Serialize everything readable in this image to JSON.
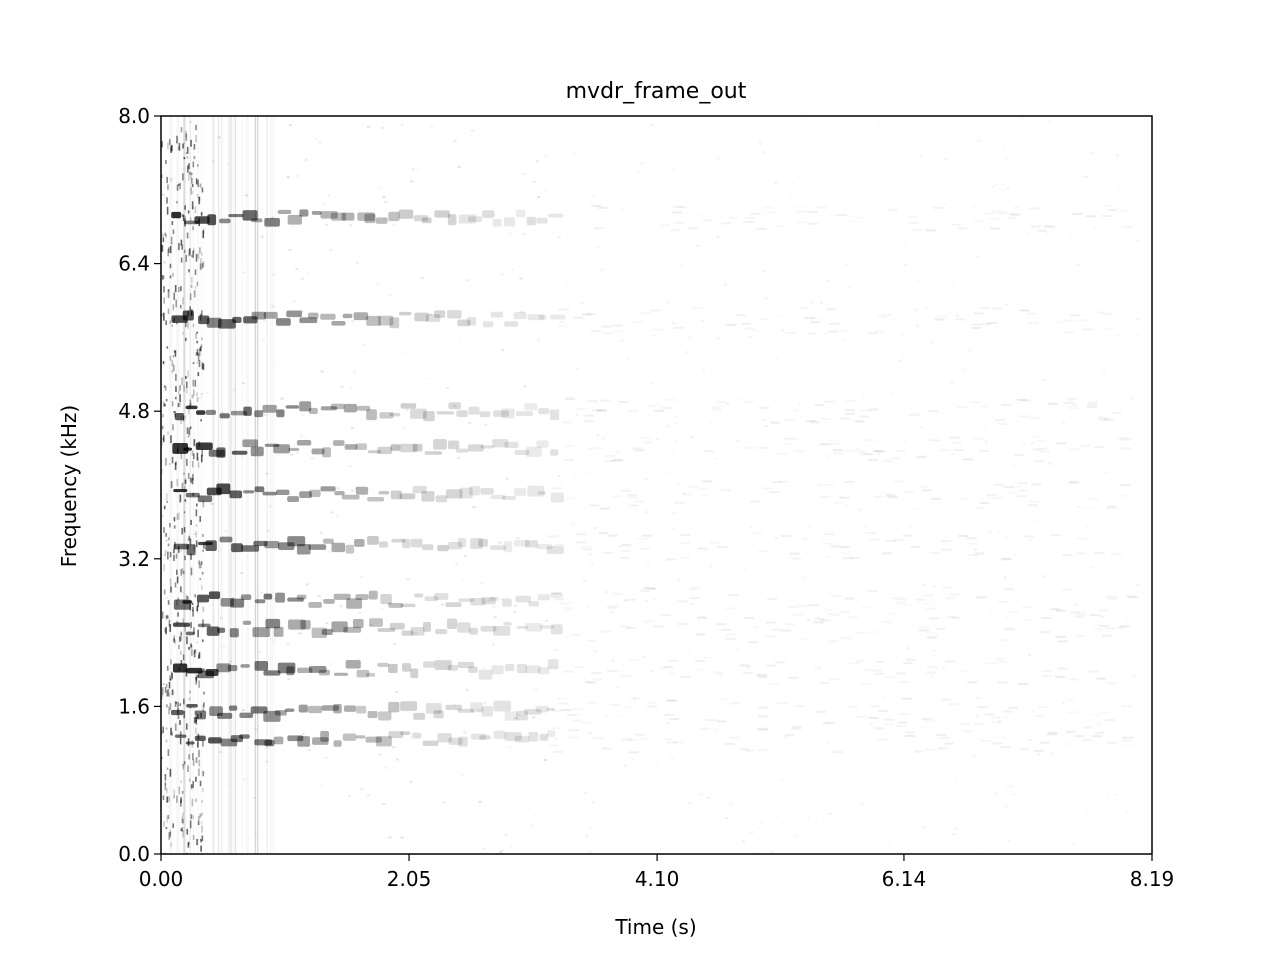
{
  "chart_data": {
    "type": "heatmap",
    "title": "mvdr_frame_out",
    "xlabel": "Time (s)",
    "ylabel": "Frequency (kHz)",
    "xlim": [
      0.0,
      8.19
    ],
    "ylim": [
      0.0,
      8.0
    ],
    "x_ticks": [
      "0.00",
      "2.05",
      "4.10",
      "6.14",
      "8.19"
    ],
    "x_tick_values": [
      0.0,
      2.05,
      4.1,
      6.14,
      8.19
    ],
    "y_ticks": [
      "0.0",
      "1.6",
      "3.2",
      "4.8",
      "6.4",
      "8.0"
    ],
    "y_tick_values": [
      0.0,
      1.6,
      3.2,
      4.8,
      6.4,
      8.0
    ],
    "colormap": "gray_r",
    "grid": false,
    "dark_harmonic_bands_khz": [
      1.25,
      1.55,
      2.0,
      2.45,
      2.75,
      3.35,
      3.9,
      4.4,
      4.8,
      5.8,
      6.9
    ],
    "speech_active_seconds": [
      0.0,
      3.2
    ]
  }
}
